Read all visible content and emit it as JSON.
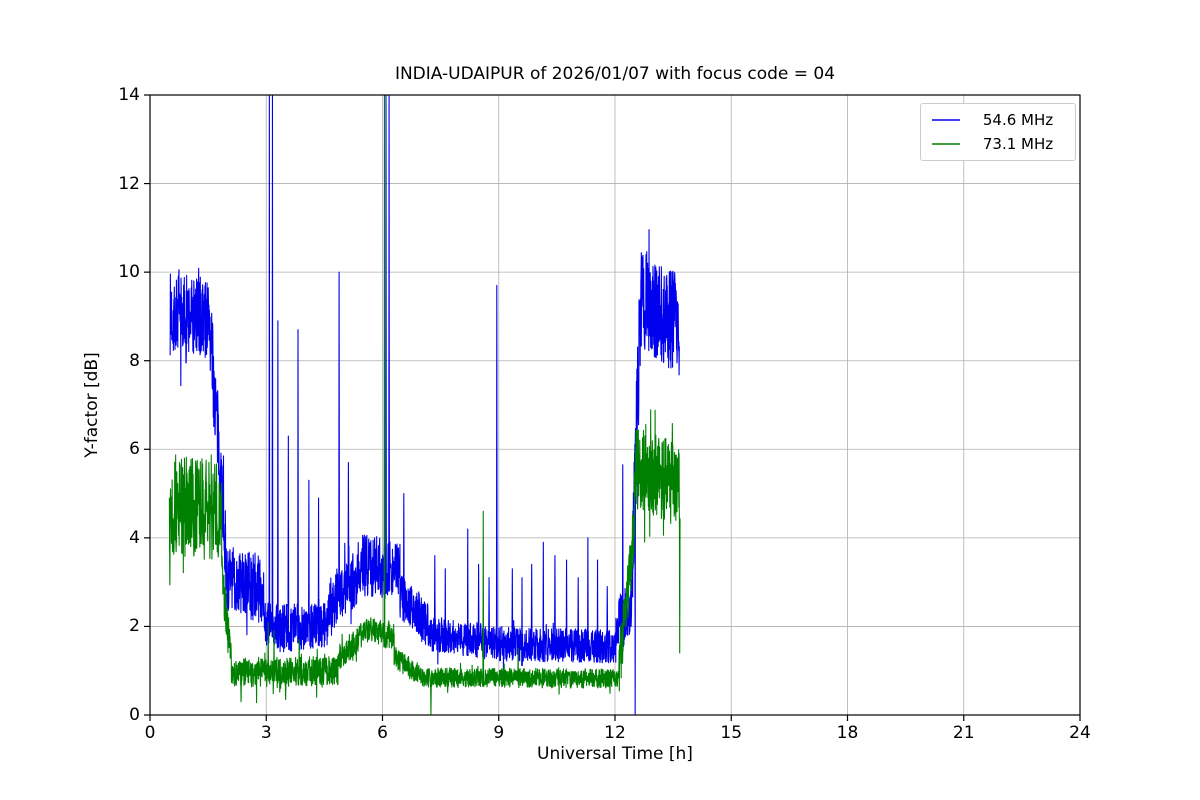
{
  "chart_data": {
    "type": "line",
    "title": "INDIA-UDAIPUR of 2026/01/07 with focus code = 04",
    "xlabel": "Universal Time [h]",
    "ylabel": "Y-factor [dB]",
    "xlim": [
      0,
      24
    ],
    "ylim": [
      0,
      14
    ],
    "xticks": [
      0,
      3,
      6,
      9,
      12,
      15,
      18,
      21,
      24
    ],
    "yticks": [
      0,
      2,
      4,
      6,
      8,
      10,
      12,
      14
    ],
    "grid": true,
    "grid_color": "#b0b0b0",
    "legend_position": "upper-right",
    "series": [
      {
        "name": "54.6 MHz",
        "color": "#0000ee",
        "seed": 7,
        "segments": [
          [
            0.52,
            1.55,
            9.05,
            8.95,
            0.95
          ],
          [
            1.55,
            1.95,
            8.6,
            4.0,
            1.0
          ],
          [
            1.95,
            2.95,
            3.1,
            2.8,
            0.75
          ],
          [
            2.95,
            3.4,
            2.1,
            1.9,
            0.55
          ],
          [
            3.4,
            4.6,
            1.95,
            2.1,
            0.55
          ],
          [
            4.6,
            5.35,
            2.5,
            3.1,
            0.65
          ],
          [
            5.35,
            6.45,
            3.4,
            3.3,
            0.7
          ],
          [
            6.45,
            7.2,
            2.7,
            2.0,
            0.5
          ],
          [
            7.2,
            9.2,
            1.85,
            1.6,
            0.4
          ],
          [
            9.2,
            12.05,
            1.6,
            1.55,
            0.38
          ],
          [
            12.05,
            12.45,
            1.9,
            2.6,
            0.7
          ],
          [
            12.45,
            12.68,
            3.5,
            9.8,
            1.3
          ],
          [
            12.68,
            13.66,
            9.4,
            8.8,
            1.15
          ]
        ],
        "spikes": [
          [
            3.08,
            14
          ],
          [
            3.16,
            14
          ],
          [
            3.3,
            8.9
          ],
          [
            3.57,
            6.3
          ],
          [
            3.82,
            8.7
          ],
          [
            4.1,
            5.3
          ],
          [
            4.35,
            4.9
          ],
          [
            4.88,
            10.0
          ],
          [
            5.12,
            5.7
          ],
          [
            6.09,
            14
          ],
          [
            6.17,
            14
          ],
          [
            6.55,
            5.0
          ],
          [
            7.35,
            3.6
          ],
          [
            7.62,
            3.3
          ],
          [
            8.2,
            4.2
          ],
          [
            8.48,
            3.4
          ],
          [
            8.75,
            3.1
          ],
          [
            8.95,
            9.7
          ],
          [
            9.35,
            3.3
          ],
          [
            9.6,
            3.1
          ],
          [
            9.85,
            3.4
          ],
          [
            10.15,
            3.9
          ],
          [
            10.45,
            3.6
          ],
          [
            10.75,
            3.5
          ],
          [
            11.05,
            3.1
          ],
          [
            11.3,
            4.0
          ],
          [
            11.55,
            3.5
          ],
          [
            11.8,
            2.9
          ],
          [
            12.2,
            5.65
          ],
          [
            12.52,
            0.0
          ]
        ]
      },
      {
        "name": "73.1 MHz",
        "color": "#008000",
        "seed": 13,
        "segments": [
          [
            0.5,
            1.85,
            4.75,
            4.6,
            1.15
          ],
          [
            1.85,
            2.1,
            3.2,
            1.15,
            0.5
          ],
          [
            2.1,
            4.85,
            0.95,
            1.0,
            0.33
          ],
          [
            4.85,
            5.5,
            1.25,
            1.85,
            0.3
          ],
          [
            5.5,
            6.3,
            1.95,
            1.75,
            0.3
          ],
          [
            6.3,
            6.95,
            1.3,
            0.9,
            0.25
          ],
          [
            6.95,
            12.1,
            0.85,
            0.82,
            0.22
          ],
          [
            12.1,
            12.5,
            1.0,
            4.2,
            0.7
          ],
          [
            12.5,
            13.66,
            5.6,
            5.2,
            0.95
          ]
        ],
        "spikes": [
          [
            2.35,
            0.3
          ],
          [
            2.75,
            0.28
          ],
          [
            3.05,
            2.1
          ],
          [
            3.2,
            1.9
          ],
          [
            3.5,
            0.35
          ],
          [
            3.85,
            1.7
          ],
          [
            4.3,
            0.4
          ],
          [
            4.9,
            1.6
          ],
          [
            6.05,
            14
          ],
          [
            7.25,
            0.02
          ],
          [
            8.6,
            4.6
          ],
          [
            9.5,
            1.5
          ],
          [
            13.67,
            1.4
          ]
        ]
      }
    ]
  }
}
